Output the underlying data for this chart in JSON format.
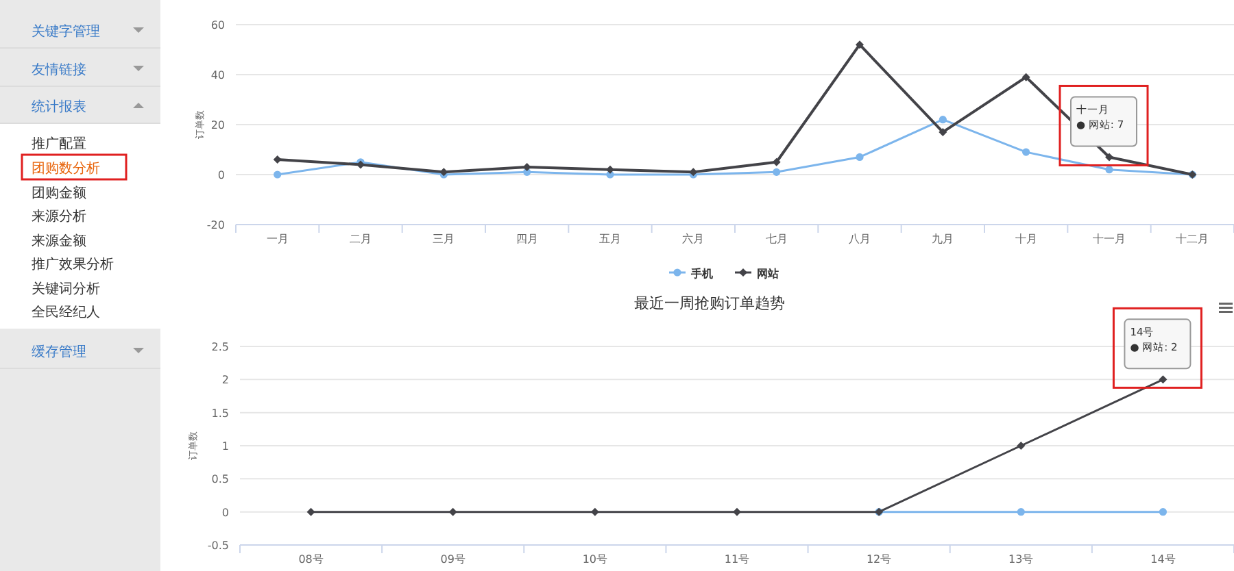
{
  "chart_data": [
    {
      "type": "other",
      "annotations": [
        "关键字管理",
        "友情链接",
        "统计报表",
        "推广配置",
        "团购数分析",
        "团购金额",
        "来源分析",
        "来源金额",
        "推广效果分析",
        "关键词分析",
        "全民经纪人",
        "缓存管理"
      ]
    },
    {
      "type": "line",
      "ylabel": "订单数",
      "categories": [
        "一月",
        "二月",
        "三月",
        "四月",
        "五月",
        "六月",
        "七月",
        "八月",
        "九月",
        "十月",
        "十一月",
        "十二月"
      ],
      "series": [
        {
          "name": "手机",
          "color": "#7cb5ec",
          "marker": "circle",
          "values": [
            0,
            5,
            0,
            1,
            0,
            0,
            1,
            7,
            22,
            9,
            2,
            0
          ]
        },
        {
          "name": "网站",
          "color": "#434348",
          "marker": "diamond",
          "values": [
            6,
            4,
            1,
            3,
            2,
            1,
            5,
            52,
            17,
            39,
            7,
            0
          ]
        }
      ],
      "ylim": [
        -20,
        60
      ],
      "yticks": [
        -20,
        0,
        20,
        40,
        60
      ],
      "grid": "y",
      "legend": "bottom",
      "annotations": [
        {
          "text": "十一月\n● 网站: 7",
          "x": "十一月",
          "y": 7
        }
      ]
    },
    {
      "type": "line",
      "title": "最近一周抢购订单趋势",
      "ylabel": "订单数",
      "categories": [
        "08号",
        "09号",
        "10号",
        "11号",
        "12号",
        "13号",
        "14号"
      ],
      "series": [
        {
          "color": "#7cb5ec",
          "marker": "circle",
          "values": [
            null,
            null,
            null,
            null,
            0,
            0,
            0
          ]
        },
        {
          "color": "#434348",
          "marker": "diamond",
          "values": [
            0,
            0,
            0,
            0,
            0,
            1,
            2
          ]
        }
      ],
      "ylim": [
        -0.5,
        2.5
      ],
      "yticks": [
        -0.5,
        0,
        0.5,
        1,
        1.5,
        2,
        2.5
      ],
      "grid": "y",
      "annotations": [
        {
          "text": "14号\n● 网站: 2",
          "x": "14号",
          "y": 2
        }
      ]
    }
  ]
}
